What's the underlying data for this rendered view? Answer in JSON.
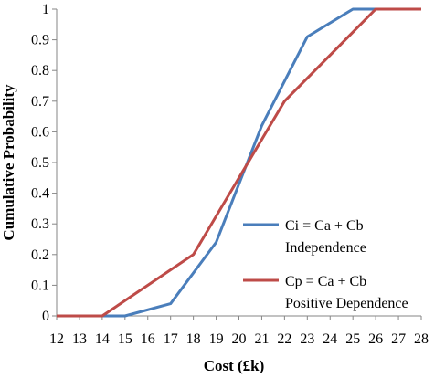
{
  "chart_data": {
    "type": "line",
    "xlabel": "Cost (£k)",
    "ylabel": "Cumulative Probability",
    "x_ticks": [
      "12",
      "13",
      "14",
      "15",
      "16",
      "17",
      "18",
      "19",
      "20",
      "21",
      "22",
      "23",
      "24",
      "25",
      "26",
      "27",
      "28"
    ],
    "y_ticks": [
      "0",
      "0.1",
      "0.2",
      "0.3",
      "0.4",
      "0.5",
      "0.6",
      "0.7",
      "0.8",
      "0.9",
      "1"
    ],
    "xlim": [
      12,
      28
    ],
    "ylim": [
      0,
      1
    ],
    "grid": false,
    "legend_position": "right",
    "series": [
      {
        "name_line1": "Ci = Ca + Cb",
        "name_line2": "Independence",
        "color": "#4a7ebb",
        "points": [
          [
            12,
            0
          ],
          [
            15,
            0
          ],
          [
            17,
            0.04
          ],
          [
            19,
            0.24
          ],
          [
            21,
            0.62
          ],
          [
            23,
            0.91
          ],
          [
            25,
            1
          ],
          [
            28,
            1
          ]
        ]
      },
      {
        "name_line1": "Cp = Ca + Cb",
        "name_line2": "Positive Dependence",
        "color": "#be4b48",
        "points": [
          [
            12,
            0
          ],
          [
            14,
            0
          ],
          [
            18,
            0.2
          ],
          [
            20,
            0.45
          ],
          [
            22,
            0.7
          ],
          [
            26,
            1
          ],
          [
            28,
            1
          ]
        ]
      }
    ]
  }
}
